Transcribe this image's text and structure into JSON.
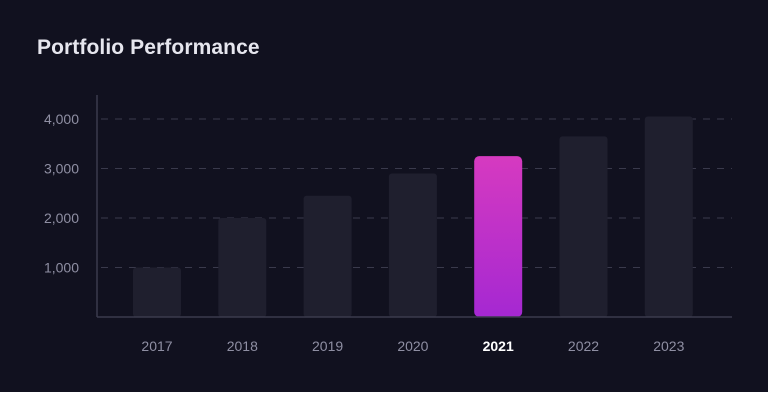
{
  "card": {
    "title": "Portfolio Performance"
  },
  "colors": {
    "background": "#11111f",
    "bar": "#1f1f2e",
    "highlight_top": "#d63ac0",
    "highlight_bottom": "#a528d2",
    "grid": "#3a3a4c",
    "axis": "#3b3b4d",
    "label": "#8f8fa3",
    "label_active": "#ffffff"
  },
  "chart_data": {
    "type": "bar",
    "title": "Portfolio Performance",
    "xlabel": "",
    "ylabel": "",
    "categories": [
      "2017",
      "2018",
      "2019",
      "2020",
      "2021",
      "2022",
      "2023"
    ],
    "values": [
      1000,
      2000,
      2450,
      2900,
      3250,
      3650,
      4050
    ],
    "highlighted_category": "2021",
    "ylim": [
      0,
      4500
    ],
    "yticks": [
      1000,
      2000,
      3000,
      4000
    ],
    "ytick_labels": [
      "1,000",
      "2,000",
      "3,000",
      "4,000"
    ],
    "grid": "horizontal-dashed",
    "legend": "none"
  }
}
